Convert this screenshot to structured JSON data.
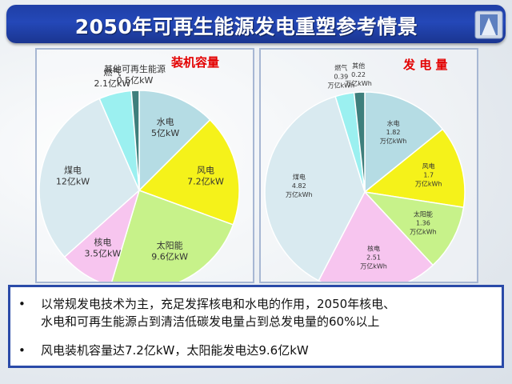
{
  "title": "2050年可再生能源发电重塑参考情景",
  "colors": {
    "hydro": "#b5dce4",
    "wind": "#f5f21a",
    "solar": "#c7f28a",
    "nuclear": "#f7c5ef",
    "coal": "#d9eaf0",
    "gas": "#9bf0f0",
    "other": "#3e7f7c"
  },
  "chart_data": [
    {
      "type": "pie",
      "title": "装机容量",
      "slices": [
        {
          "name": "水电",
          "value": 5,
          "label": "5亿kW",
          "color_key": "hydro"
        },
        {
          "name": "风电",
          "value": 7.2,
          "label": "7.2亿kW",
          "color_key": "wind"
        },
        {
          "name": "太阳能",
          "value": 9.6,
          "label": "9.6亿kW",
          "color_key": "solar"
        },
        {
          "name": "核电",
          "value": 3.5,
          "label": "3.5亿kW",
          "color_key": "nuclear"
        },
        {
          "name": "煤电",
          "value": 12,
          "label": "12亿kW",
          "color_key": "coal"
        },
        {
          "name": "燃气",
          "value": 2.1,
          "label": "2.1亿kW",
          "color_key": "gas"
        },
        {
          "name": "其他可再生能源",
          "value": 0.5,
          "label": "0.5亿kW",
          "color_key": "other"
        }
      ]
    },
    {
      "type": "pie",
      "title": "发 电 量",
      "slices": [
        {
          "name": "水电",
          "value": 1.82,
          "label": "1.82",
          "unit": "万亿kWh",
          "color_key": "hydro"
        },
        {
          "name": "风电",
          "value": 1.7,
          "label": "1.7",
          "unit": "万亿kWh",
          "color_key": "wind"
        },
        {
          "name": "太阳能",
          "value": 1.36,
          "label": "1.36",
          "unit": "万亿kWh",
          "color_key": "solar"
        },
        {
          "name": "核电",
          "value": 2.51,
          "label": "2.51",
          "unit": "万亿kWh",
          "color_key": "nuclear"
        },
        {
          "name": "煤电",
          "value": 4.82,
          "label": "4.82",
          "unit": "万亿kWh",
          "color_key": "coal"
        },
        {
          "name": "燃气",
          "value": 0.39,
          "label": "0.39",
          "unit": "万亿kWh",
          "color_key": "gas"
        },
        {
          "name": "其他",
          "value": 0.22,
          "label": "0.22",
          "unit": "万亿kWh",
          "color_key": "other"
        }
      ]
    }
  ],
  "bullets": [
    {
      "marker": "•",
      "lines": [
        "以常规发电技术为主，充足发挥核电和水电的作用，2050年核电、",
        "水电和可再生能源占到清洁低碳发电量占到总发电量的60%以上"
      ]
    },
    {
      "marker": "•",
      "lines": [
        "风电装机容量达7.2亿kW，太阳能发电达9.6亿kW"
      ]
    }
  ]
}
